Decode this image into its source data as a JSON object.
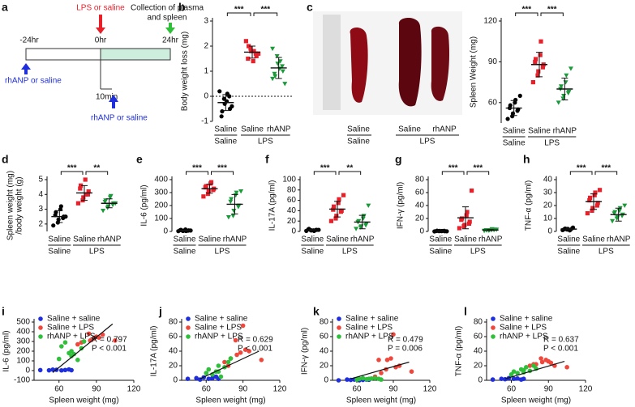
{
  "timeline": {
    "panel": "a",
    "times": [
      "-24hr",
      "0hr",
      "24hr"
    ],
    "lps": "LPS or saline",
    "collection": [
      "Collection of plasma",
      "and spleen"
    ],
    "rhanp": [
      "rhANP or saline",
      "rhANP or saline"
    ],
    "delay": "10min"
  },
  "spleen_image": {
    "categories": [
      "Saline",
      "Saline",
      "rhANP"
    ],
    "group_labels": [
      "Saline",
      "LPS"
    ]
  },
  "chart_data": [
    {
      "type": "strip",
      "panel": "b",
      "ylabel": [
        "Body weight loss (mg)"
      ],
      "ylim": [
        -1,
        3
      ],
      "yticks": [
        -1,
        0,
        1,
        2,
        3
      ],
      "zero_line": true,
      "categories": [
        "Saline",
        "Saline",
        "rhANP"
      ],
      "group_labels": [
        "Saline",
        "LPS"
      ],
      "significance": [
        "***",
        "***"
      ],
      "groups": [
        {
          "color": "#000000",
          "marker": "circle",
          "values": [
            0.2,
            -0.1,
            -0.3,
            0.0,
            -0.5,
            -0.8,
            -0.6,
            -0.2,
            0.1,
            -0.4
          ],
          "mean": -0.25,
          "sd": 0.32
        },
        {
          "color": "#e8202a",
          "marker": "square",
          "values": [
            2.2,
            1.9,
            1.8,
            1.7,
            1.6,
            1.5,
            2.0,
            1.4,
            1.8,
            1.7
          ],
          "mean": 1.76,
          "sd": 0.24
        },
        {
          "color": "#1a9a3a",
          "marker": "triangle",
          "values": [
            1.9,
            1.6,
            1.3,
            1.2,
            1.0,
            0.9,
            0.8,
            1.1,
            1.4,
            0.5,
            0.7
          ],
          "mean": 1.13,
          "sd": 0.42
        }
      ]
    },
    {
      "type": "strip",
      "panel": "c",
      "ylabel": [
        "Spleen Weight (mg)"
      ],
      "ylim": [
        45,
        120
      ],
      "yticks": [
        60,
        90,
        120
      ],
      "zero_line": false,
      "categories": [
        "Saline",
        "Saline",
        "rhANP"
      ],
      "group_labels": [
        "Saline",
        "LPS"
      ],
      "significance": [
        "***",
        "***"
      ],
      "groups": [
        {
          "color": "#000000",
          "marker": "circle",
          "values": [
            48,
            50,
            52,
            54,
            55,
            56,
            58,
            60,
            62,
            65
          ],
          "mean": 56,
          "sd": 5.5
        },
        {
          "color": "#e8202a",
          "marker": "square",
          "values": [
            75,
            80,
            83,
            86,
            88,
            90,
            92,
            95,
            105
          ],
          "mean": 88,
          "sd": 9
        },
        {
          "color": "#1a9a3a",
          "marker": "triangle",
          "values": [
            60,
            63,
            65,
            67,
            68,
            70,
            72,
            75,
            80,
            85
          ],
          "mean": 70,
          "sd": 8
        }
      ]
    },
    {
      "type": "strip",
      "panel": "d",
      "ylabel": [
        "Spleen weight (mg)",
        "/body weight (g)"
      ],
      "ylim": [
        1.5,
        5
      ],
      "yticks": [
        2,
        3,
        4,
        5
      ],
      "zero_line": false,
      "categories": [
        "Saline",
        "Saline",
        "rhANP"
      ],
      "group_labels": [
        "Saline",
        "LPS"
      ],
      "significance": [
        "***",
        "**"
      ],
      "groups": [
        {
          "color": "#000000",
          "marker": "circle",
          "values": [
            1.9,
            2.1,
            2.3,
            2.4,
            2.5,
            2.6,
            2.8,
            3.0,
            3.2,
            2.5
          ],
          "mean": 2.5,
          "sd": 0.4
        },
        {
          "color": "#e8202a",
          "marker": "square",
          "values": [
            3.4,
            3.6,
            3.8,
            4.0,
            4.2,
            4.4,
            4.6,
            5.0,
            4.0
          ],
          "mean": 4.1,
          "sd": 0.5
        },
        {
          "color": "#1a9a3a",
          "marker": "triangle",
          "values": [
            2.9,
            3.1,
            3.2,
            3.3,
            3.4,
            3.5,
            3.6,
            3.8,
            3.9,
            3.4
          ],
          "mean": 3.4,
          "sd": 0.3
        }
      ]
    },
    {
      "type": "strip",
      "panel": "e",
      "ylabel": [
        "IL-6 (pg/ml)"
      ],
      "ylim": [
        0,
        400
      ],
      "yticks": [
        0,
        100,
        200,
        300,
        400
      ],
      "zero_line": false,
      "categories": [
        "Saline",
        "Saline",
        "rhANP"
      ],
      "group_labels": [
        "Saline",
        "LPS"
      ],
      "significance": [
        "***",
        "***"
      ],
      "groups": [
        {
          "color": "#000000",
          "marker": "circle",
          "values": [
            2,
            4,
            5,
            6,
            8,
            10,
            12,
            15,
            3,
            7
          ],
          "mean": 7,
          "sd": 4
        },
        {
          "color": "#e8202a",
          "marker": "square",
          "values": [
            270,
            290,
            310,
            320,
            330,
            340,
            350,
            370,
            380
          ],
          "mean": 330,
          "sd": 35
        },
        {
          "color": "#1a9a3a",
          "marker": "triangle",
          "values": [
            110,
            120,
            160,
            190,
            200,
            230,
            250,
            280,
            300,
            310
          ],
          "mean": 210,
          "sd": 75
        }
      ]
    },
    {
      "type": "strip",
      "panel": "f",
      "ylabel": [
        "IL-17A (pg/ml)"
      ],
      "ylim": [
        0,
        100
      ],
      "yticks": [
        0,
        20,
        40,
        60,
        80,
        100
      ],
      "zero_line": false,
      "categories": [
        "Saline",
        "Saline",
        "rhANP"
      ],
      "group_labels": [
        "Saline",
        "LPS"
      ],
      "significance": [
        "***",
        "**"
      ],
      "groups": [
        {
          "color": "#000000",
          "marker": "circle",
          "values": [
            1,
            2,
            2,
            3,
            3,
            4,
            5,
            2,
            1,
            3
          ],
          "mean": 2.6,
          "sd": 1.2
        },
        {
          "color": "#e8202a",
          "marker": "square",
          "values": [
            20,
            25,
            30,
            38,
            40,
            42,
            48,
            55,
            62,
            70
          ],
          "mean": 43,
          "sd": 15
        },
        {
          "color": "#1a9a3a",
          "marker": "triangle",
          "values": [
            5,
            8,
            10,
            12,
            15,
            18,
            20,
            25,
            30,
            50
          ],
          "mean": 18,
          "sd": 13
        }
      ]
    },
    {
      "type": "strip",
      "panel": "g",
      "ylabel": [
        "IFN-γ (pg/ml)"
      ],
      "ylim": [
        0,
        80
      ],
      "yticks": [
        0,
        20,
        40,
        60,
        80
      ],
      "zero_line": false,
      "categories": [
        "Saline",
        "Saline",
        "rhANP"
      ],
      "group_labels": [
        "Saline",
        "LPS"
      ],
      "significance": [
        "***",
        "***"
      ],
      "groups": [
        {
          "color": "#000000",
          "marker": "circle",
          "values": [
            0,
            0.5,
            0.8,
            1,
            0.3,
            0.6,
            1.2,
            0.4,
            0.7,
            0.2
          ],
          "mean": 0.6,
          "sd": 0.4
        },
        {
          "color": "#e8202a",
          "marker": "square",
          "values": [
            5,
            8,
            10,
            12,
            15,
            18,
            20,
            25,
            30,
            63
          ],
          "mean": 21,
          "sd": 17
        },
        {
          "color": "#1a9a3a",
          "marker": "triangle",
          "values": [
            1,
            1.5,
            2,
            2.5,
            3,
            2,
            1.8,
            2.2,
            3.5,
            2.8
          ],
          "mean": 2.2,
          "sd": 0.8
        }
      ]
    },
    {
      "type": "strip",
      "panel": "h",
      "ylabel": [
        "TNF-α (pg/ml)"
      ],
      "ylim": [
        0,
        40
      ],
      "yticks": [
        0,
        10,
        20,
        30,
        40
      ],
      "zero_line": false,
      "categories": [
        "Saline",
        "Saline",
        "rhANP"
      ],
      "group_labels": [
        "Saline",
        "LPS"
      ],
      "significance": [
        "***",
        "***"
      ],
      "groups": [
        {
          "color": "#000000",
          "marker": "circle",
          "values": [
            1,
            1.5,
            2,
            2.5,
            3,
            1.8,
            2.2,
            0.8,
            1.2
          ],
          "mean": 1.8,
          "sd": 0.7
        },
        {
          "color": "#e8202a",
          "marker": "square",
          "values": [
            14,
            16,
            18,
            20,
            22,
            24,
            26,
            28,
            30,
            32
          ],
          "mean": 23,
          "sd": 6
        },
        {
          "color": "#1a9a3a",
          "marker": "triangle",
          "values": [
            8,
            10,
            11,
            12,
            13,
            14,
            15,
            16,
            18,
            20
          ],
          "mean": 13,
          "sd": 5
        }
      ]
    },
    {
      "type": "scatter",
      "panel": "i",
      "xlabel": "Spleen weight (mg)",
      "ylabel": [
        "IL-6 (pg/ml)"
      ],
      "xlim": [
        40,
        120
      ],
      "xticks": [
        60,
        90,
        120
      ],
      "ylim": [
        -100,
        500
      ],
      "yticks": [
        -100,
        0,
        100,
        200,
        300,
        400,
        500
      ],
      "annotations": [
        "R = 0.797",
        "P < 0.001"
      ],
      "fit": {
        "x": [
          55,
          103
        ],
        "y": [
          -20,
          480
        ]
      },
      "series": [
        {
          "name": "Saline + saline",
          "color": "#1f2fdc",
          "x": [
            45,
            52,
            55,
            58,
            62,
            65,
            68,
            70
          ],
          "y": [
            5,
            3,
            10,
            8,
            2,
            6,
            12,
            4
          ]
        },
        {
          "name": "Saline + LPS",
          "color": "#f0473c",
          "x": [
            75,
            80,
            85,
            88,
            90,
            92,
            95,
            105,
            84,
            78
          ],
          "y": [
            270,
            300,
            310,
            330,
            350,
            340,
            370,
            310,
            380,
            290
          ]
        },
        {
          "name": "rhANP + LPS",
          "color": "#2fbf3a",
          "x": [
            60,
            62,
            65,
            68,
            70,
            72,
            75,
            78,
            80,
            70
          ],
          "y": [
            120,
            250,
            290,
            180,
            200,
            170,
            110,
            230,
            300,
            150
          ]
        }
      ]
    },
    {
      "type": "scatter",
      "panel": "j",
      "xlabel": "Spleen weight (mg)",
      "ylabel": [
        "IL-17A (pg/ml)"
      ],
      "xlim": [
        40,
        120
      ],
      "xticks": [
        60,
        90,
        120
      ],
      "ylim": [
        0,
        80
      ],
      "yticks": [
        0,
        20,
        40,
        60,
        80
      ],
      "annotations": [
        "R = 0.629",
        "P < 0.001"
      ],
      "fit": {
        "x": [
          55,
          103
        ],
        "y": [
          2,
          40
        ]
      },
      "series": [
        {
          "name": "Saline + saline",
          "color": "#1f2fdc",
          "x": [
            45,
            52,
            55,
            58,
            62,
            65,
            68,
            70
          ],
          "y": [
            2,
            3,
            1,
            4,
            2,
            3,
            5,
            2
          ]
        },
        {
          "name": "Saline + LPS",
          "color": "#f0473c",
          "x": [
            75,
            80,
            85,
            88,
            90,
            92,
            95,
            105,
            84,
            78
          ],
          "y": [
            25,
            30,
            35,
            38,
            75,
            42,
            40,
            28,
            55,
            20
          ]
        },
        {
          "name": "rhANP + LPS",
          "color": "#2fbf3a",
          "x": [
            60,
            62,
            65,
            68,
            70,
            72,
            75,
            78,
            80,
            70
          ],
          "y": [
            10,
            15,
            8,
            12,
            20,
            5,
            18,
            25,
            30,
            12
          ]
        }
      ]
    },
    {
      "type": "scatter",
      "panel": "k",
      "xlabel": "Spleen weight (mg)",
      "ylabel": [
        "IFN-γ (pg/ml)"
      ],
      "xlim": [
        40,
        120
      ],
      "xticks": [
        60,
        90,
        120
      ],
      "ylim": [
        0,
        80
      ],
      "yticks": [
        0,
        20,
        40,
        60,
        80
      ],
      "annotations": [
        "R = 0.479",
        "P = 0.006"
      ],
      "fit": {
        "x": [
          55,
          103
        ],
        "y": [
          2,
          25
        ]
      },
      "series": [
        {
          "name": "Saline + saline",
          "color": "#1f2fdc",
          "x": [
            45,
            52,
            55,
            58,
            62,
            65,
            68,
            70
          ],
          "y": [
            0,
            1,
            0.5,
            1,
            0,
            0.5,
            1,
            0.8
          ]
        },
        {
          "name": "Saline + LPS",
          "color": "#f0473c",
          "x": [
            75,
            80,
            85,
            88,
            90,
            92,
            95,
            105,
            84,
            78
          ],
          "y": [
            5,
            10,
            28,
            30,
            63,
            18,
            20,
            12,
            15,
            28
          ]
        },
        {
          "name": "rhANP + LPS",
          "color": "#2fbf3a",
          "x": [
            60,
            62,
            65,
            68,
            70,
            72,
            75,
            78,
            80,
            70
          ],
          "y": [
            1,
            2,
            3,
            1.5,
            2,
            2.5,
            3,
            2,
            1,
            2
          ]
        }
      ]
    },
    {
      "type": "scatter",
      "panel": "l",
      "xlabel": "Spleen weight (mg)",
      "ylabel": [
        "TNF-α (pg/ml)"
      ],
      "xlim": [
        40,
        120
      ],
      "xticks": [
        60,
        90,
        120
      ],
      "ylim": [
        0,
        80
      ],
      "yticks": [
        0,
        20,
        40,
        60,
        80
      ],
      "annotations": [
        "R = 0.637",
        "P < 0.001"
      ],
      "fit": {
        "x": [
          55,
          103
        ],
        "y": [
          2,
          26
        ]
      },
      "series": [
        {
          "name": "Saline + saline",
          "color": "#1f2fdc",
          "x": [
            45,
            52,
            55,
            58,
            62,
            65,
            68,
            70
          ],
          "y": [
            1,
            2,
            1.5,
            3,
            2,
            2.5,
            1,
            2
          ]
        },
        {
          "name": "Saline + LPS",
          "color": "#f0473c",
          "x": [
            75,
            80,
            85,
            88,
            90,
            92,
            95,
            105,
            84,
            78
          ],
          "y": [
            20,
            22,
            25,
            28,
            26,
            24,
            20,
            18,
            30,
            22
          ]
        },
        {
          "name": "rhANP + LPS",
          "color": "#2fbf3a",
          "x": [
            60,
            62,
            65,
            68,
            70,
            72,
            75,
            78,
            80,
            70
          ],
          "y": [
            8,
            12,
            10,
            15,
            14,
            18,
            13,
            20,
            16,
            11
          ]
        }
      ]
    }
  ]
}
